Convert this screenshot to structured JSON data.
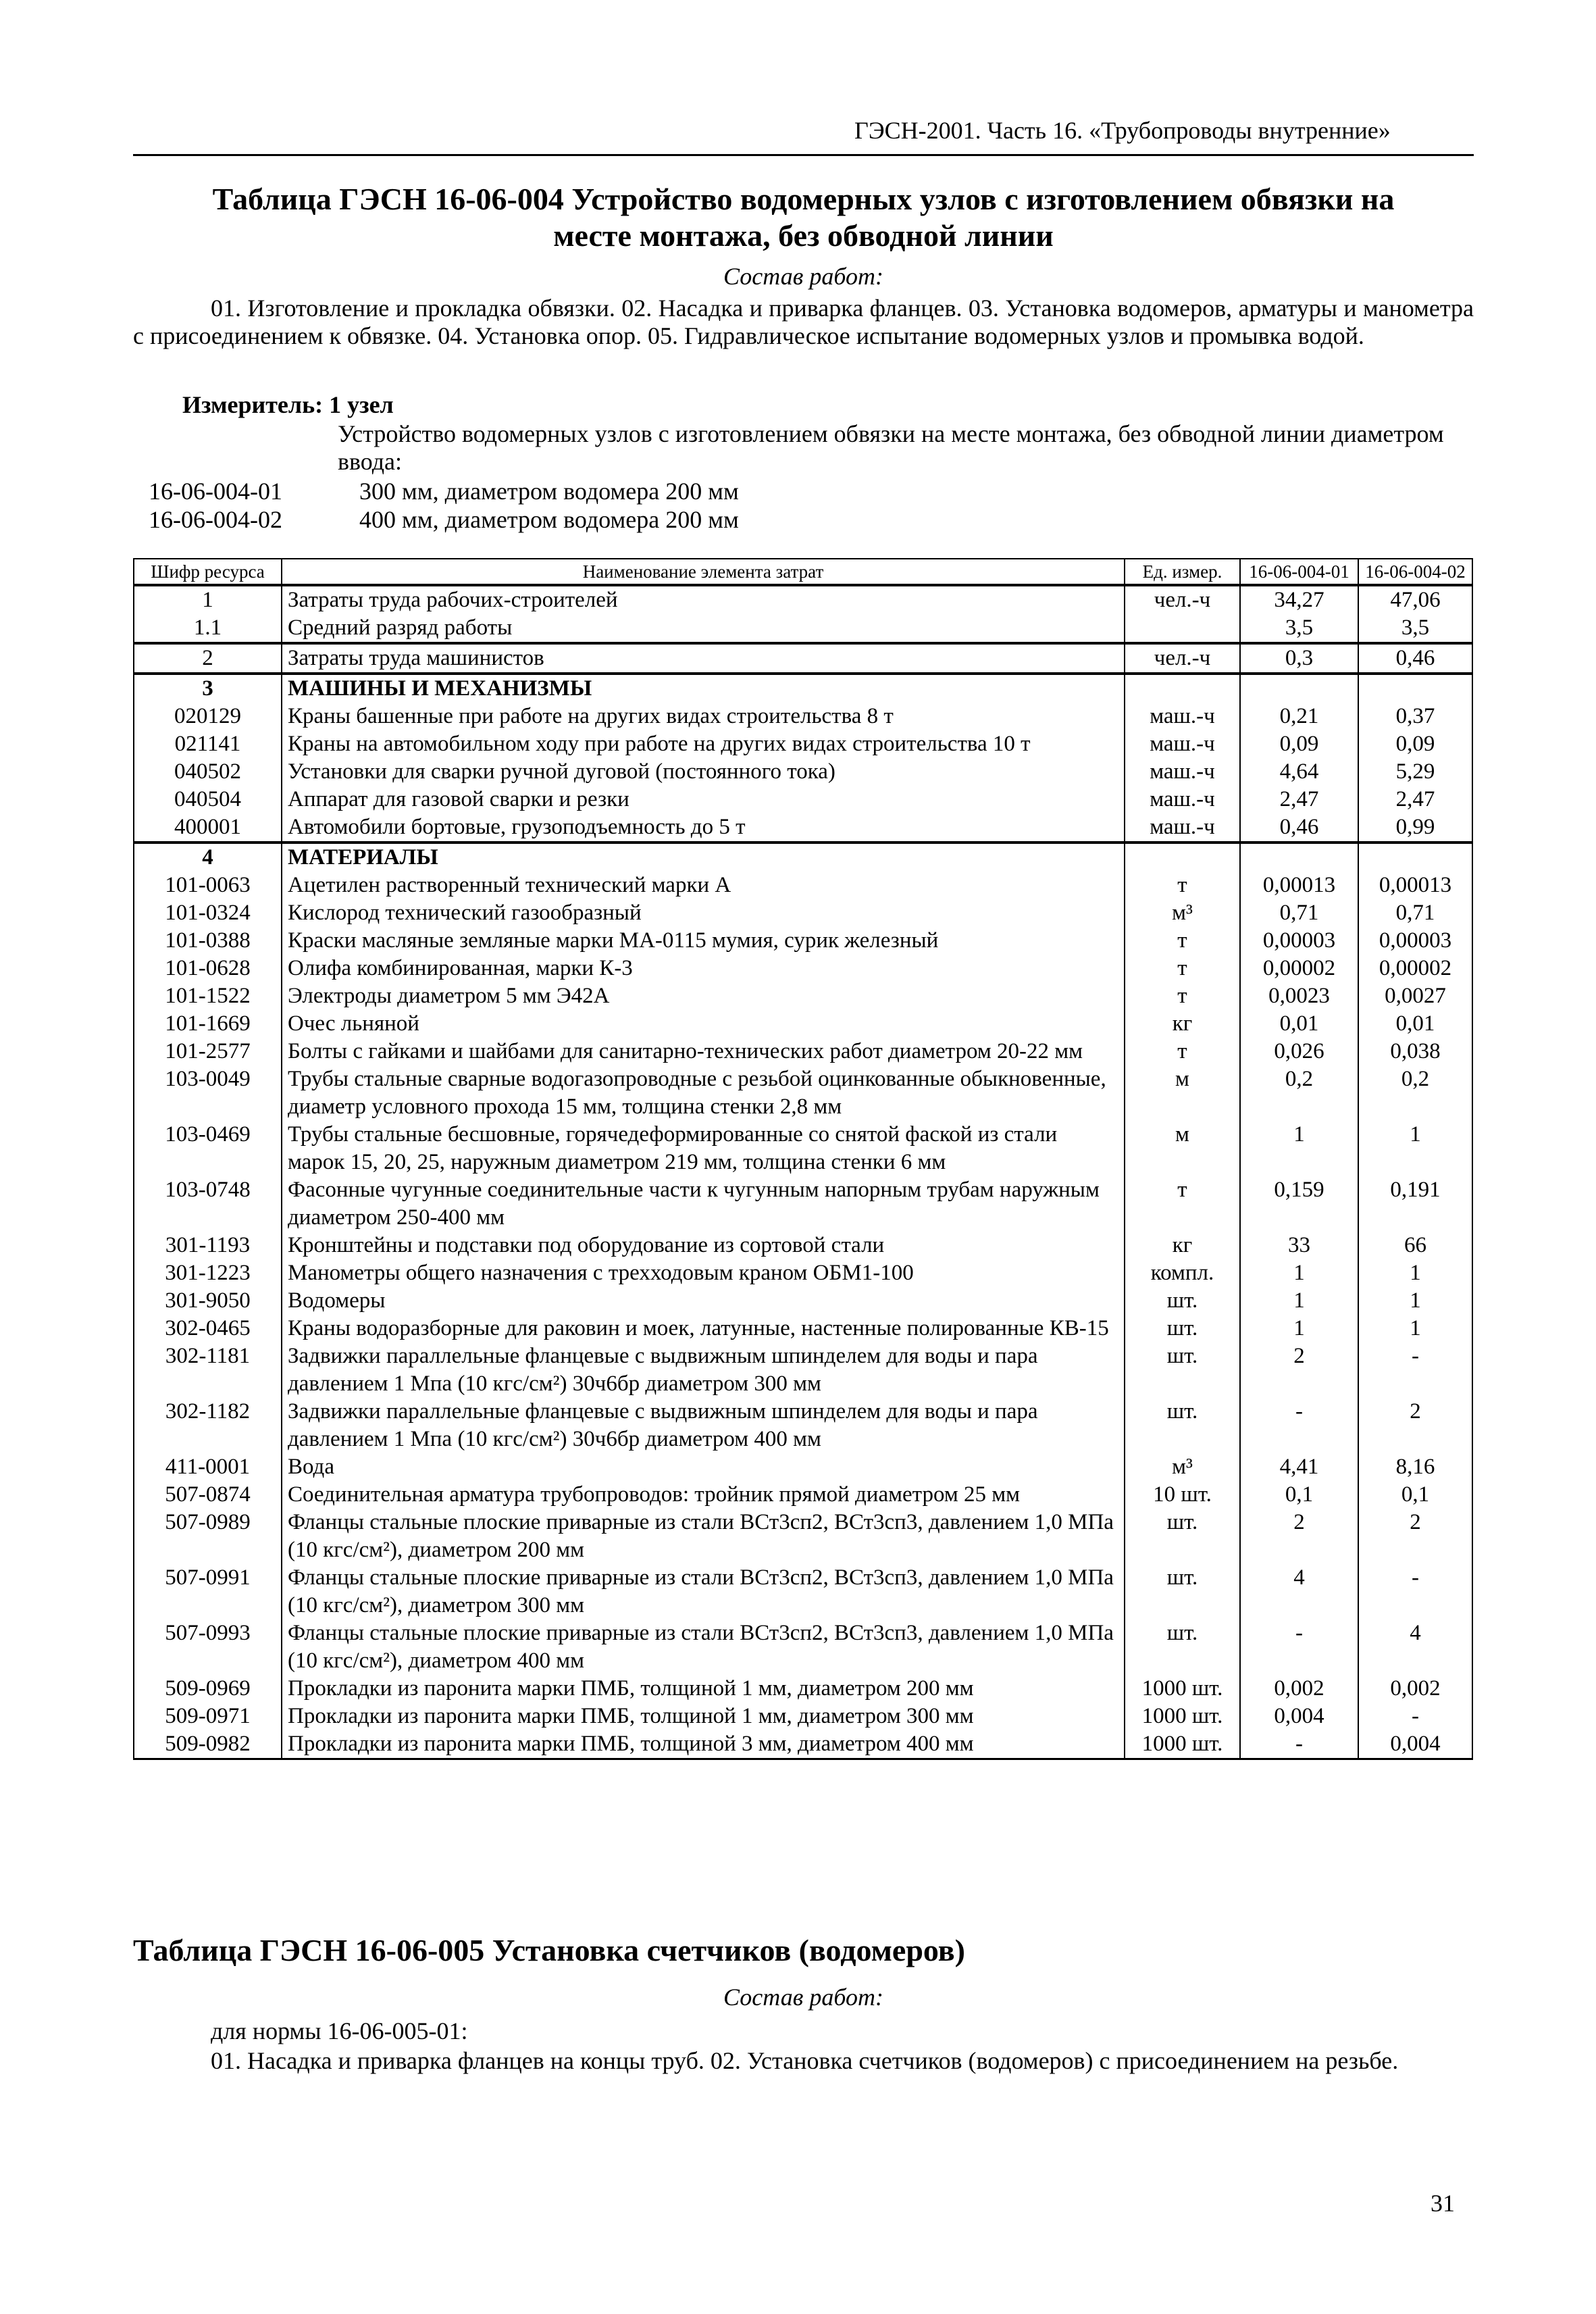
{
  "running_header": "ГЭСН-2001. Часть 16. «Трубопроводы внутренние»",
  "table1": {
    "title_line1": "Таблица ГЭСН 16-06-004 Устройство водомерных узлов с изготовлением обвязки на",
    "title_line2": "месте монтажа, без обводной линии",
    "work_label": "Состав работ:",
    "work_text": "01. Изготовление и прокладка обвязки. 02. Насадка и приварка фланцев. 03. Установка водомеров, арматуры и манометра с присоединением к обвязке. 04. Установка опор. 05. Гидравлическое испытание водомерных узлов и промывка водой.",
    "measure": "Измеритель: 1 узел",
    "description": "Устройство водомерных узлов с изготовлением обвязки на месте монтажа, без обводной линии диаметром ввода:",
    "norms": [
      {
        "code": "16-06-004-01",
        "text": "300 мм, диаметром водомера 200 мм"
      },
      {
        "code": "16-06-004-02",
        "text": "400 мм, диаметром водомера 200 мм"
      }
    ],
    "columns": [
      "Шифр ресурса",
      "Наименование элемента затрат",
      "Ед. измер.",
      "16-06-004-01",
      "16-06-004-02"
    ],
    "rows": [
      {
        "code": "1",
        "name": "Затраты труда рабочих-строителей",
        "unit": "чел.-ч",
        "v1": "34,27",
        "v2": "47,06",
        "group": true
      },
      {
        "code": "1.1",
        "name": "Средний разряд работы",
        "unit": "",
        "v1": "3,5",
        "v2": "3,5"
      },
      {
        "code": "2",
        "name": "Затраты труда машинистов",
        "unit": "чел.-ч",
        "v1": "0,3",
        "v2": "0,46",
        "group": true
      },
      {
        "code": "3",
        "name": "МАШИНЫ И МЕХАНИЗМЫ",
        "unit": "",
        "v1": "",
        "v2": "",
        "group": true,
        "bold": true
      },
      {
        "code": "020129",
        "name": "Краны башенные при работе на других видах строительства 8 т",
        "unit": "маш.-ч",
        "v1": "0,21",
        "v2": "0,37"
      },
      {
        "code": "021141",
        "name": "Краны на автомобильном ходу при работе на других видах строительства 10 т",
        "unit": "маш.-ч",
        "v1": "0,09",
        "v2": "0,09"
      },
      {
        "code": "040502",
        "name": "Установки для сварки ручной дуговой (постоянного тока)",
        "unit": "маш.-ч",
        "v1": "4,64",
        "v2": "5,29"
      },
      {
        "code": "040504",
        "name": "Аппарат для газовой сварки и резки",
        "unit": "маш.-ч",
        "v1": "2,47",
        "v2": "2,47"
      },
      {
        "code": "400001",
        "name": "Автомобили бортовые, грузоподъемность до 5 т",
        "unit": "маш.-ч",
        "v1": "0,46",
        "v2": "0,99"
      },
      {
        "code": "4",
        "name": "МАТЕРИАЛЫ",
        "unit": "",
        "v1": "",
        "v2": "",
        "group": true,
        "bold": true
      },
      {
        "code": "101-0063",
        "name": "Ацетилен растворенный технический марки А",
        "unit": "т",
        "v1": "0,00013",
        "v2": "0,00013"
      },
      {
        "code": "101-0324",
        "name": "Кислород технический газообразный",
        "unit": "м³",
        "v1": "0,71",
        "v2": "0,71"
      },
      {
        "code": "101-0388",
        "name": "Краски масляные земляные марки МА-0115 мумия, сурик железный",
        "unit": "т",
        "v1": "0,00003",
        "v2": "0,00003"
      },
      {
        "code": "101-0628",
        "name": "Олифа комбинированная, марки К-3",
        "unit": "т",
        "v1": "0,00002",
        "v2": "0,00002"
      },
      {
        "code": "101-1522",
        "name": "Электроды диаметром 5 мм Э42А",
        "unit": "т",
        "v1": "0,0023",
        "v2": "0,0027"
      },
      {
        "code": "101-1669",
        "name": "Очес льняной",
        "unit": "кг",
        "v1": "0,01",
        "v2": "0,01"
      },
      {
        "code": "101-2577",
        "name": "Болты с гайками и шайбами для санитарно-технических работ диаметром 20-22 мм",
        "unit": "т",
        "v1": "0,026",
        "v2": "0,038"
      },
      {
        "code": "103-0049",
        "name": "Трубы стальные сварные водогазопроводные с резьбой оцинкованные обыкновенные, диаметр условного прохода 15 мм, толщина стенки 2,8 мм",
        "unit": "м",
        "v1": "0,2",
        "v2": "0,2"
      },
      {
        "code": "103-0469",
        "name": "Трубы стальные бесшовные, горячедеформированные со снятой фаской из стали марок 15, 20, 25, наружным диаметром 219 мм, толщина стенки 6 мм",
        "unit": "м",
        "v1": "1",
        "v2": "1"
      },
      {
        "code": "103-0748",
        "name": "Фасонные чугунные соединительные части к чугунным напорным трубам наружным диаметром 250-400 мм",
        "unit": "т",
        "v1": "0,159",
        "v2": "0,191"
      },
      {
        "code": "301-1193",
        "name": "Кронштейны и подставки под оборудование из сортовой стали",
        "unit": "кг",
        "v1": "33",
        "v2": "66"
      },
      {
        "code": "301-1223",
        "name": "Манометры общего назначения с трехходовым краном ОБМ1-100",
        "unit": "компл.",
        "v1": "1",
        "v2": "1"
      },
      {
        "code": "301-9050",
        "name": "Водомеры",
        "unit": "шт.",
        "v1": "1",
        "v2": "1"
      },
      {
        "code": "302-0465",
        "name": "Краны водоразборные для раковин и моек, латунные, настенные полированные КВ-15",
        "unit": "шт.",
        "v1": "1",
        "v2": "1"
      },
      {
        "code": "302-1181",
        "name": "Задвижки параллельные фланцевые с выдвижным шпинделем для воды и пара давлением 1 Мпа (10 кгс/см²) 30ч6бр диаметром 300 мм",
        "unit": "шт.",
        "v1": "2",
        "v2": "-"
      },
      {
        "code": "302-1182",
        "name": "Задвижки параллельные фланцевые с выдвижным шпинделем для воды и пара давлением 1 Мпа (10 кгс/см²) 30ч6бр диаметром 400 мм",
        "unit": "шт.",
        "v1": "-",
        "v2": "2"
      },
      {
        "code": "411-0001",
        "name": "Вода",
        "unit": "м³",
        "v1": "4,41",
        "v2": "8,16"
      },
      {
        "code": "507-0874",
        "name": "Соединительная арматура трубопроводов: тройник прямой диаметром 25 мм",
        "unit": "10 шт.",
        "v1": "0,1",
        "v2": "0,1"
      },
      {
        "code": "507-0989",
        "name": "Фланцы стальные плоские приварные из стали ВСт3сп2, ВСт3сп3, давлением 1,0 МПа (10 кгс/см²), диаметром 200 мм",
        "unit": "шт.",
        "v1": "2",
        "v2": "2"
      },
      {
        "code": "507-0991",
        "name": "Фланцы стальные плоские приварные из стали ВСт3сп2, ВСт3сп3, давлением 1,0 МПа (10 кгс/см²), диаметром 300 мм",
        "unit": "шт.",
        "v1": "4",
        "v2": "-"
      },
      {
        "code": "507-0993",
        "name": "Фланцы стальные плоские приварные из стали ВСт3сп2, ВСт3сп3, давлением 1,0 МПа (10 кгс/см²), диаметром 400 мм",
        "unit": "шт.",
        "v1": "-",
        "v2": "4"
      },
      {
        "code": "509-0969",
        "name": "Прокладки из паронита марки ПМБ, толщиной 1 мм, диаметром 200 мм",
        "unit": "1000 шт.",
        "v1": "0,002",
        "v2": "0,002"
      },
      {
        "code": "509-0971",
        "name": "Прокладки из паронита марки ПМБ, толщиной 1 мм, диаметром 300 мм",
        "unit": "1000 шт.",
        "v1": "0,004",
        "v2": "-"
      },
      {
        "code": "509-0982",
        "name": "Прокладки из паронита марки ПМБ, толщиной 3 мм, диаметром 400 мм",
        "unit": "1000 шт.",
        "v1": "-",
        "v2": "0,004"
      }
    ]
  },
  "table2": {
    "title": "Таблица ГЭСН 16-06-005 Установка счетчиков (водомеров)",
    "work_label": "Состав работ:",
    "for_norm": "для нормы 16-06-005-01:",
    "work_text": "01. Насадка и приварка фланцев на концы труб. 02. Установка счетчиков (водомеров) с присоединением на резьбе."
  },
  "page_number": "31"
}
